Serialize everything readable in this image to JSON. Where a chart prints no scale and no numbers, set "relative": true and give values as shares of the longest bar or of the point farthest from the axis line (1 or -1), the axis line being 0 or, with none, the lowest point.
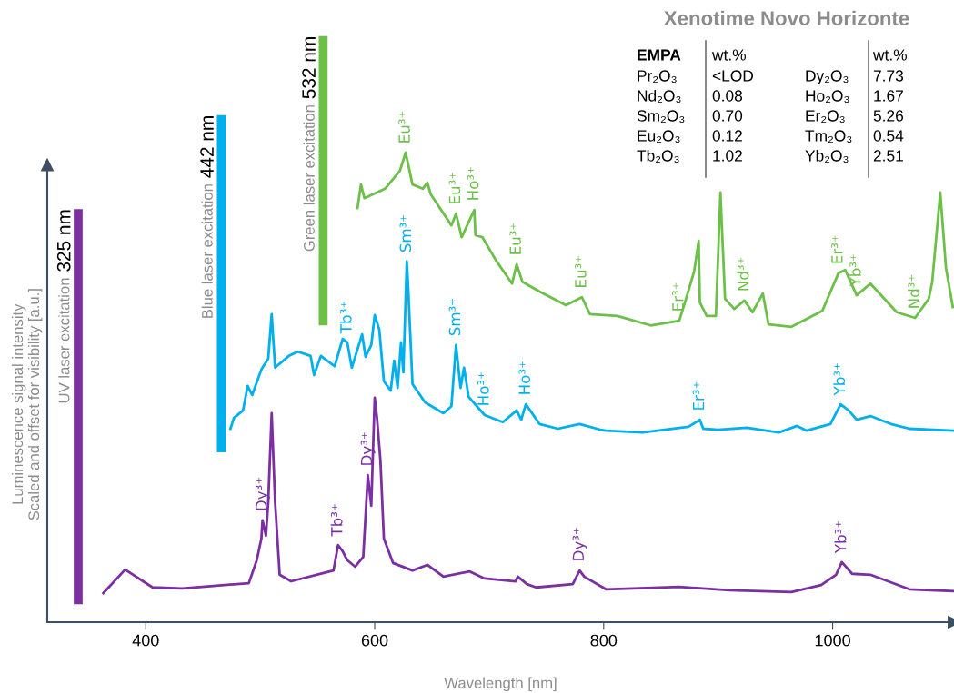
{
  "chart_data": {
    "type": "line",
    "relative": true,
    "title": "Xenotime Novo Horizonte",
    "xlabel": "Wavelength [nm]",
    "ylabel": "Luminescence signal intensity\nScaled and offset for visibility [a.u.]",
    "xlim": [
      314,
      1106
    ],
    "xticks": [
      400,
      600,
      800,
      1000
    ],
    "tick_labels": "x",
    "grid": false,
    "legend": false,
    "marker": "none",
    "line_style": "solid",
    "series": [
      {
        "color": "#7b2fa0",
        "x": [
          363,
          382,
          406,
          432,
          490,
          497,
          501,
          502,
          505,
          507,
          510,
          513,
          517,
          527,
          564,
          568,
          572,
          576,
          583,
          590,
          594,
          597,
          600,
          602,
          605,
          608,
          616,
          633,
          646,
          660,
          683,
          696,
          723,
          725,
          733,
          741,
          773,
          779,
          783,
          802,
          866,
          910,
          964,
          990,
          1003,
          1008,
          1017,
          1033,
          1067,
          1105
        ],
        "values": [
          0.062,
          0.112,
          0.074,
          0.072,
          0.083,
          0.132,
          0.178,
          0.217,
          0.184,
          0.255,
          0.445,
          0.255,
          0.101,
          0.087,
          0.11,
          0.164,
          0.151,
          0.132,
          0.118,
          0.139,
          0.313,
          0.248,
          0.478,
          0.435,
          0.344,
          0.178,
          0.126,
          0.11,
          0.122,
          0.097,
          0.108,
          0.093,
          0.087,
          0.097,
          0.081,
          0.074,
          0.081,
          0.11,
          0.097,
          0.07,
          0.075,
          0.068,
          0.064,
          0.079,
          0.101,
          0.128,
          0.103,
          0.101,
          0.07,
          0.066
        ]
      },
      {
        "color": "#00b0ec",
        "x": [
          474,
          477,
          485,
          489,
          493,
          501,
          507,
          510,
          513,
          525,
          533,
          544,
          547,
          553,
          565,
          572,
          576,
          580,
          589,
          592,
          597,
          600,
          604,
          608,
          614,
          617,
          620,
          623,
          625,
          628,
          629,
          633,
          644,
          660,
          667,
          671,
          675,
          678,
          682,
          696,
          712,
          724,
          728,
          732,
          744,
          760,
          779,
          797,
          802,
          834,
          874,
          884,
          887,
          900,
          925,
          953,
          969,
          977,
          998,
          1007,
          1014,
          1021,
          1033,
          1051,
          1067,
          1106
        ],
        "values": [
          0.412,
          0.435,
          0.451,
          0.503,
          0.484,
          0.538,
          0.561,
          0.656,
          0.542,
          0.567,
          0.576,
          0.567,
          0.526,
          0.567,
          0.545,
          0.603,
          0.596,
          0.542,
          0.613,
          0.565,
          0.59,
          0.654,
          0.623,
          0.513,
          0.493,
          0.557,
          0.499,
          0.596,
          0.532,
          0.768,
          0.725,
          0.507,
          0.468,
          0.445,
          0.46,
          0.59,
          0.499,
          0.542,
          0.48,
          0.441,
          0.426,
          0.451,
          0.431,
          0.464,
          0.422,
          0.412,
          0.422,
          0.41,
          0.408,
          0.404,
          0.416,
          0.431,
          0.412,
          0.41,
          0.414,
          0.404,
          0.418,
          0.408,
          0.422,
          0.464,
          0.451,
          0.431,
          0.439,
          0.422,
          0.412,
          0.408
        ]
      },
      {
        "color": "#6cc04a",
        "x": [
          585,
          588,
          591,
          609,
          622,
          627,
          633,
          642,
          646,
          649,
          667,
          671,
          676,
          687,
          688,
          694,
          706,
          720,
          724,
          729,
          744,
          767,
          781,
          788,
          812,
          841,
          866,
          872,
          879,
          883,
          884,
          890,
          898,
          902,
          906,
          914,
          923,
          930,
          939,
          944,
          964,
          991,
          1005,
          1011,
          1021,
          1033,
          1056,
          1072,
          1084,
          1087,
          1094,
          1099,
          1105
        ],
        "values": [
          0.882,
          0.932,
          0.903,
          0.923,
          0.961,
          1.0,
          0.932,
          0.923,
          0.936,
          0.911,
          0.845,
          0.87,
          0.82,
          0.878,
          0.824,
          0.82,
          0.77,
          0.721,
          0.762,
          0.725,
          0.704,
          0.675,
          0.692,
          0.656,
          0.652,
          0.632,
          0.642,
          0.689,
          0.747,
          0.812,
          0.681,
          0.652,
          0.652,
          0.915,
          0.689,
          0.667,
          0.685,
          0.66,
          0.7,
          0.634,
          0.629,
          0.663,
          0.743,
          0.75,
          0.696,
          0.721,
          0.66,
          0.648,
          0.689,
          0.725,
          0.915,
          0.754,
          0.671
        ]
      }
    ],
    "ref_lines": [
      {
        "axis": "x",
        "value": 341,
        "label": "325 nm",
        "color": "#7b2fa0"
      },
      {
        "axis": "x",
        "value": 466,
        "label": "442 nm",
        "color": "#00b0ec"
      },
      {
        "axis": "x",
        "value": 555,
        "label": "532 nm",
        "color": "#6cc04a"
      }
    ],
    "annotations": [
      "UV laser excitation",
      "Blue laser excitation",
      "Green laser excitation",
      "EMPA",
      "wt.%",
      "wt.%",
      "Pr₂O₃",
      "<LOD",
      "Dy₂O₃",
      "7.73",
      "Nd₂O₃",
      "0.08",
      "Ho₂O₃",
      "1.67",
      "Sm₂O₃",
      "0.70",
      "Er₂O₃",
      "5.26",
      "Eu₂O₃",
      "0.12",
      "Tm₂O₃",
      "0.54",
      "Tb₂O₃",
      "1.02",
      "Yb₂O₃",
      "2.51",
      {
        "text": "Eu³⁺",
        "x": 627,
        "y": 1.0
      },
      {
        "text": "Eu³⁺",
        "x": 671,
        "y": 0.87
      },
      {
        "text": "Ho³⁺",
        "x": 687,
        "y": 0.878
      },
      {
        "text": "Eu³⁺",
        "x": 724,
        "y": 0.762
      },
      {
        "text": "Eu³⁺",
        "x": 781,
        "y": 0.692
      },
      {
        "text": "Er³⁺",
        "x": 866,
        "y": 0.642
      },
      {
        "text": "Nd³⁺",
        "x": 923,
        "y": 0.685
      },
      {
        "text": "Er³⁺",
        "x": 1005,
        "y": 0.743
      },
      {
        "text": "Yb³⁺",
        "x": 1021,
        "y": 0.696
      },
      {
        "text": "Nd³⁺",
        "x": 1072,
        "y": 0.648
      },
      {
        "text": "Tb³⁺",
        "x": 576,
        "y": 0.596
      },
      {
        "text": "Sm³⁺",
        "x": 628,
        "y": 0.768
      },
      {
        "text": "Sm³⁺",
        "x": 671,
        "y": 0.59
      },
      {
        "text": "Ho³⁺",
        "x": 696,
        "y": 0.441
      },
      {
        "text": "Ho³⁺",
        "x": 732,
        "y": 0.464
      },
      {
        "text": "Er³⁺",
        "x": 884,
        "y": 0.431
      },
      {
        "text": "Yb³⁺",
        "x": 1007,
        "y": 0.464
      },
      {
        "text": "Dy³⁺",
        "x": 502,
        "y": 0.217
      },
      {
        "text": "Tb³⁺",
        "x": 568,
        "y": 0.164
      },
      {
        "text": "Dy³⁺",
        "x": 594,
        "y": 0.313
      },
      {
        "text": "Dy³⁺",
        "x": 779,
        "y": 0.11
      },
      {
        "text": "Yb³⁺",
        "x": 1008,
        "y": 0.128
      }
    ]
  }
}
